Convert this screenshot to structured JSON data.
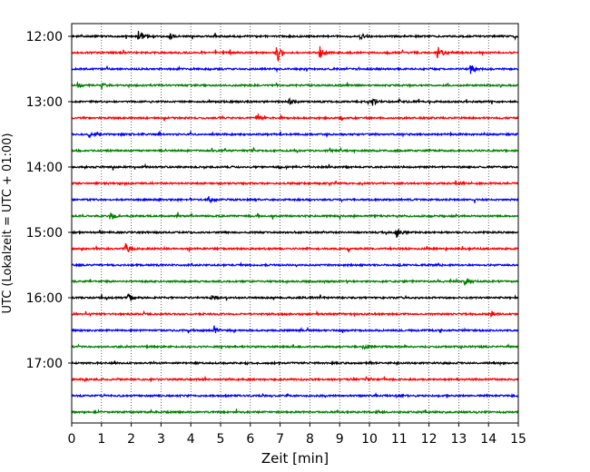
{
  "chart_data": {
    "type": "line",
    "title": "",
    "xlabel": "Zeit  [min]",
    "ylabel": "UTC (Lokalzeit = UTC + 01:00)",
    "xlim": [
      0,
      15
    ],
    "x_ticks": [
      "0",
      "1",
      "2",
      "3",
      "4",
      "5",
      "6",
      "7",
      "8",
      "9",
      "10",
      "11",
      "12",
      "13",
      "14",
      "15"
    ],
    "y_ticks": [
      "12:00",
      "13:00",
      "14:00",
      "15:00",
      "16:00",
      "17:00"
    ],
    "grid": "vertical-dotted",
    "trace_colors": [
      "#000000",
      "#ff0000",
      "#0000ff",
      "#008000"
    ],
    "traces": [
      {
        "start": "12:00",
        "color_index": 0,
        "events": [
          {
            "min": 2.25,
            "amp": 1.6
          },
          {
            "min": 3.3,
            "amp": 0.8
          },
          {
            "min": 9.7,
            "amp": 0.8
          }
        ]
      },
      {
        "start": "12:15",
        "color_index": 1,
        "events": [
          {
            "min": 6.9,
            "amp": 3.0
          },
          {
            "min": 8.35,
            "amp": 2.2
          },
          {
            "min": 12.3,
            "amp": 2.4
          }
        ]
      },
      {
        "start": "12:30",
        "color_index": 2,
        "events": [
          {
            "min": 13.4,
            "amp": 1.4
          }
        ]
      },
      {
        "start": "12:45",
        "color_index": 3,
        "events": [
          {
            "min": 0.2,
            "amp": 0.6
          },
          {
            "min": 1.0,
            "amp": 0.6
          }
        ]
      },
      {
        "start": "13:00",
        "color_index": 0,
        "events": [
          {
            "min": 7.3,
            "amp": 0.8
          },
          {
            "min": 10.1,
            "amp": 1.0
          },
          {
            "min": 11.0,
            "amp": 0.8
          }
        ]
      },
      {
        "start": "13:15",
        "color_index": 1,
        "events": [
          {
            "min": 6.2,
            "amp": 0.6
          }
        ]
      },
      {
        "start": "13:30",
        "color_index": 2,
        "events": [
          {
            "min": 0.6,
            "amp": 0.8
          }
        ]
      },
      {
        "start": "13:45",
        "color_index": 3,
        "events": []
      },
      {
        "start": "14:00",
        "color_index": 0,
        "events": []
      },
      {
        "start": "14:15",
        "color_index": 1,
        "events": [
          {
            "min": 12.9,
            "amp": 0.6
          }
        ]
      },
      {
        "start": "14:30",
        "color_index": 2,
        "events": [
          {
            "min": 4.6,
            "amp": 0.8
          }
        ]
      },
      {
        "start": "14:45",
        "color_index": 3,
        "events": [
          {
            "min": 1.3,
            "amp": 1.2
          }
        ]
      },
      {
        "start": "15:00",
        "color_index": 0,
        "events": [
          {
            "min": 10.9,
            "amp": 1.4
          }
        ]
      },
      {
        "start": "15:15",
        "color_index": 1,
        "events": [
          {
            "min": 1.8,
            "amp": 1.8
          }
        ]
      },
      {
        "start": "15:30",
        "color_index": 2,
        "events": []
      },
      {
        "start": "15:45",
        "color_index": 3,
        "events": [
          {
            "min": 13.2,
            "amp": 1.0
          }
        ]
      },
      {
        "start": "16:00",
        "color_index": 0,
        "events": [
          {
            "min": 1.9,
            "amp": 1.0
          },
          {
            "min": 4.7,
            "amp": 0.5
          }
        ]
      },
      {
        "start": "16:15",
        "color_index": 1,
        "events": [
          {
            "min": 14.1,
            "amp": 0.8
          }
        ]
      },
      {
        "start": "16:30",
        "color_index": 2,
        "events": [
          {
            "min": 4.8,
            "amp": 1.0
          }
        ]
      },
      {
        "start": "16:45",
        "color_index": 3,
        "events": [
          {
            "min": 9.8,
            "amp": 0.5
          }
        ]
      },
      {
        "start": "17:00",
        "color_index": 0,
        "events": []
      },
      {
        "start": "17:15",
        "color_index": 1,
        "events": []
      },
      {
        "start": "17:30",
        "color_index": 2,
        "events": [
          {
            "min": 10.9,
            "amp": 0.5
          }
        ]
      },
      {
        "start": "17:45",
        "color_index": 3,
        "events": []
      }
    ]
  }
}
